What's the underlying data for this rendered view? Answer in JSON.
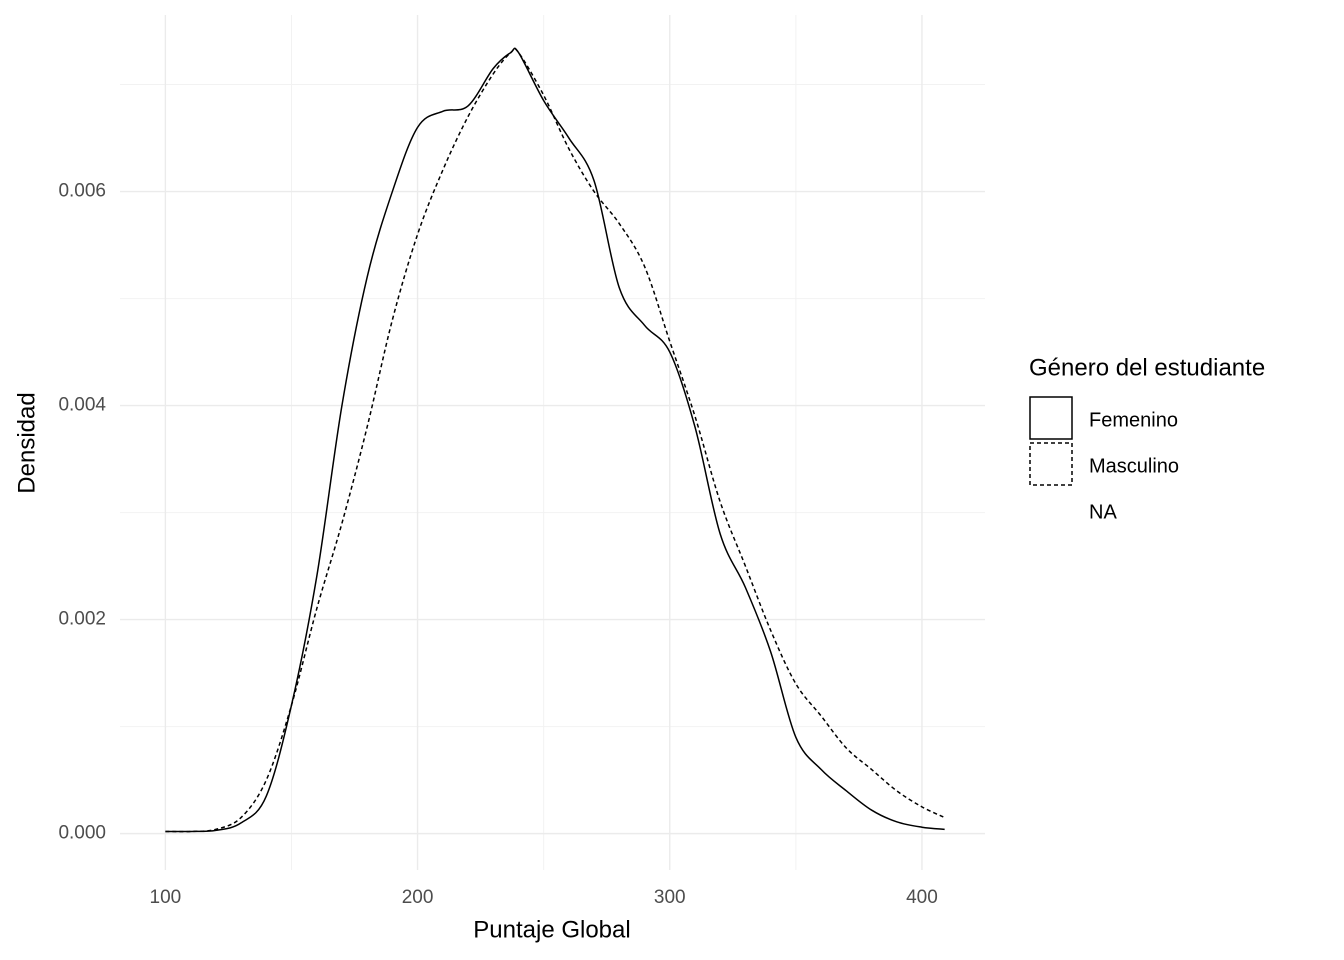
{
  "chart_data": {
    "type": "line",
    "x_label": "Puntaje Global",
    "y_label": "Densidad",
    "legend_title": "Género del estudiante",
    "legend": "right",
    "grid": true,
    "x": [
      100,
      110,
      120,
      130,
      140,
      150,
      160,
      170,
      180,
      190,
      200,
      210,
      220,
      230,
      237,
      240,
      250,
      260,
      270,
      280,
      290,
      300,
      310,
      320,
      330,
      340,
      350,
      360,
      370,
      380,
      390,
      400,
      409
    ],
    "series": [
      {
        "name": "Femenino",
        "color": "#000000",
        "linetype": "solid",
        "values": [
          2e-05,
          2e-05,
          3e-05,
          0.0001,
          0.00035,
          0.0012,
          0.0024,
          0.004,
          0.0052,
          0.006,
          0.0066,
          0.00675,
          0.0068,
          0.00715,
          0.0073,
          0.0073,
          0.00685,
          0.0065,
          0.0061,
          0.0051,
          0.00475,
          0.0045,
          0.0038,
          0.0028,
          0.0023,
          0.0017,
          0.0009,
          0.0006,
          0.0004,
          0.00022,
          0.00011,
          6e-05,
          4e-05
        ]
      },
      {
        "name": "Masculino",
        "color": "#000000",
        "linetype": "dashed",
        "values": [
          2e-05,
          2e-05,
          4e-05,
          0.00015,
          0.0005,
          0.0012,
          0.0021,
          0.0029,
          0.0038,
          0.0048,
          0.0056,
          0.0062,
          0.0067,
          0.0071,
          0.0073,
          0.0073,
          0.0069,
          0.0064,
          0.006,
          0.0057,
          0.0053,
          0.0046,
          0.0039,
          0.0031,
          0.0025,
          0.0019,
          0.0014,
          0.0011,
          0.0008,
          0.0006,
          0.0004,
          0.00025,
          0.00015
        ]
      },
      {
        "name": "NA",
        "color": "#000000",
        "linetype": "blank",
        "values": [
          null,
          null,
          null,
          null,
          null,
          null,
          null,
          null,
          null,
          null,
          null,
          null,
          null,
          null,
          null,
          null,
          null,
          null,
          null,
          null,
          null,
          null,
          null,
          null,
          null,
          null,
          null,
          null,
          null,
          null,
          null,
          null,
          null
        ]
      }
    ],
    "xlim": [
      82,
      425
    ],
    "ylim": [
      -0.00034,
      0.00765
    ],
    "xticks": [
      100,
      200,
      300,
      400
    ],
    "xminor": [
      150,
      250,
      350
    ],
    "yticks": [
      {
        "value": 0,
        "label": "0.000"
      },
      {
        "value": 0.002,
        "label": "0.002"
      },
      {
        "value": 0.004,
        "label": "0.004"
      },
      {
        "value": 0.006,
        "label": "0.006"
      }
    ],
    "yminor": [
      0.001,
      0.003,
      0.005,
      0.007
    ]
  }
}
